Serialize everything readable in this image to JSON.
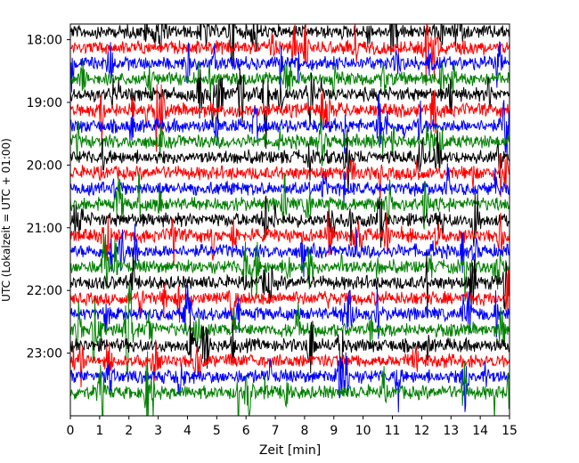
{
  "chart_data": {
    "type": "line",
    "title": "",
    "xlabel": "Zeit  [min]",
    "ylabel": "UTC (Lokalzeit = UTC + 01:00)",
    "xlim": [
      0,
      15
    ],
    "x_ticks": [
      0,
      1,
      2,
      3,
      4,
      5,
      6,
      7,
      8,
      9,
      10,
      11,
      12,
      13,
      14,
      15
    ],
    "y_ticks": [
      "18:00",
      "19:00",
      "20:00",
      "21:00",
      "22:00",
      "23:00"
    ],
    "grid": false,
    "description_of_traces": "helicorder-style plot, one trace per 15-minute interval from 17:45 to 23:45 UTC",
    "series": [
      {
        "start": "17:45",
        "color": "#000000"
      },
      {
        "start": "18:00",
        "color": "#ff0000"
      },
      {
        "start": "18:15",
        "color": "#0000ff"
      },
      {
        "start": "18:30",
        "color": "#008000"
      },
      {
        "start": "18:45",
        "color": "#000000"
      },
      {
        "start": "19:00",
        "color": "#ff0000"
      },
      {
        "start": "19:15",
        "color": "#0000ff"
      },
      {
        "start": "19:30",
        "color": "#008000"
      },
      {
        "start": "19:45",
        "color": "#000000"
      },
      {
        "start": "20:00",
        "color": "#ff0000"
      },
      {
        "start": "20:15",
        "color": "#0000ff"
      },
      {
        "start": "20:30",
        "color": "#008000"
      },
      {
        "start": "20:45",
        "color": "#000000"
      },
      {
        "start": "21:00",
        "color": "#ff0000"
      },
      {
        "start": "21:15",
        "color": "#0000ff"
      },
      {
        "start": "21:30",
        "color": "#008000"
      },
      {
        "start": "21:45",
        "color": "#000000"
      },
      {
        "start": "22:00",
        "color": "#ff0000"
      },
      {
        "start": "22:15",
        "color": "#0000ff"
      },
      {
        "start": "22:30",
        "color": "#008000"
      },
      {
        "start": "22:45",
        "color": "#000000"
      },
      {
        "start": "23:00",
        "color": "#ff0000"
      },
      {
        "start": "23:15",
        "color": "#0000ff"
      },
      {
        "start": "23:30",
        "color": "#008000"
      }
    ]
  }
}
